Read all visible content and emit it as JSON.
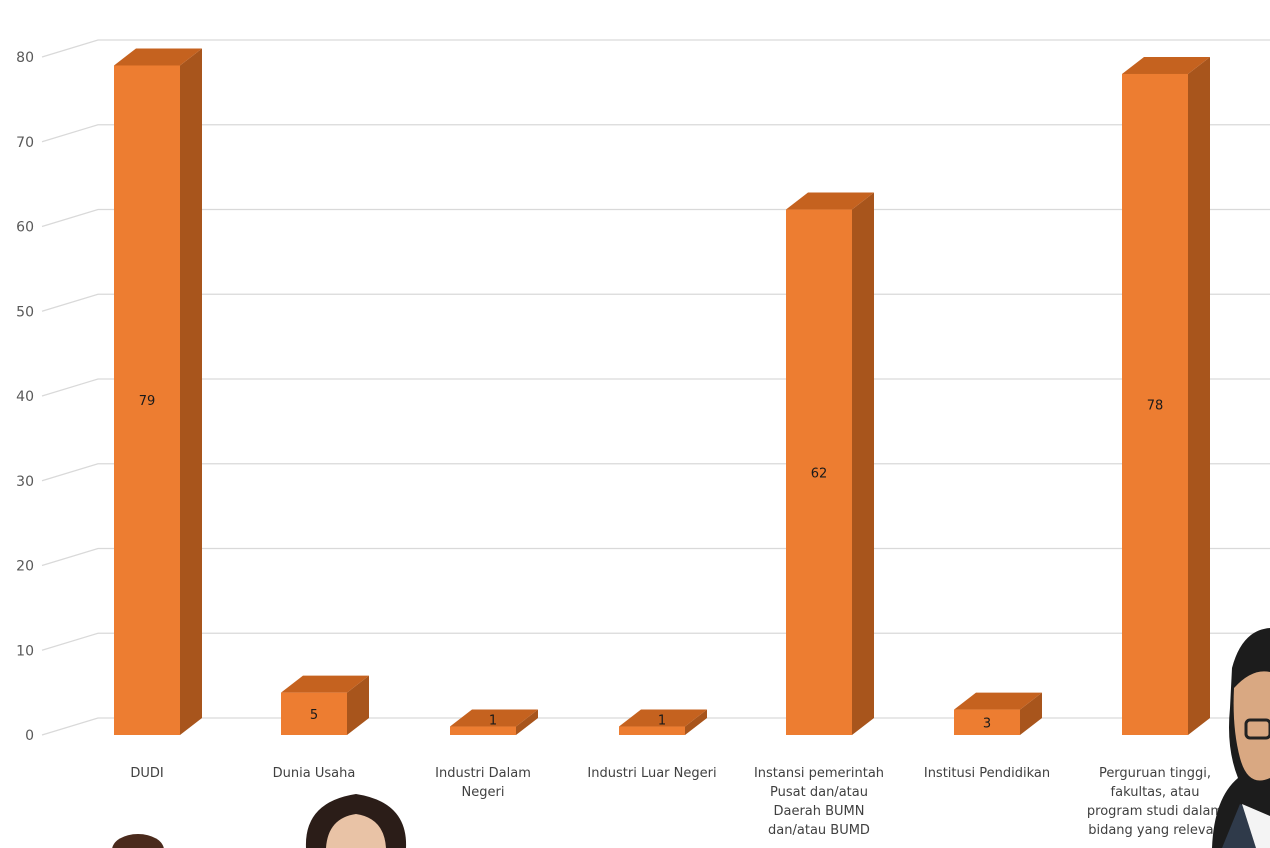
{
  "chart_data": {
    "type": "bar",
    "style": "3d-column",
    "categories": [
      [
        "DUDI"
      ],
      [
        "Dunia Usaha"
      ],
      [
        "Industri Dalam",
        "Negeri"
      ],
      [
        "Industri Luar Negeri"
      ],
      [
        "Instansi pemerintah",
        "Pusat dan/atau",
        "Daerah BUMN",
        "dan/atau BUMD"
      ],
      [
        "Institusi Pendidikan"
      ],
      [
        "Perguruan tinggi,",
        "fakultas, atau",
        "program studi dalam",
        "bidang yang relevan"
      ]
    ],
    "values": [
      79,
      5,
      1,
      1,
      62,
      3,
      78
    ],
    "data_labels": [
      "79",
      "5",
      "1",
      "1",
      "62",
      "3",
      "78"
    ],
    "ylim": [
      0,
      80
    ],
    "yticks": [
      "0",
      "10",
      "20",
      "30",
      "40",
      "50",
      "60",
      "70",
      "80"
    ],
    "grid": true,
    "legend": "none",
    "colors": {
      "bar_front": "#ED7D31",
      "bar_side": "#A8551C",
      "bar_top": "#C5621F",
      "grid": "#D9D9D9",
      "tick_text": "#595959"
    }
  }
}
